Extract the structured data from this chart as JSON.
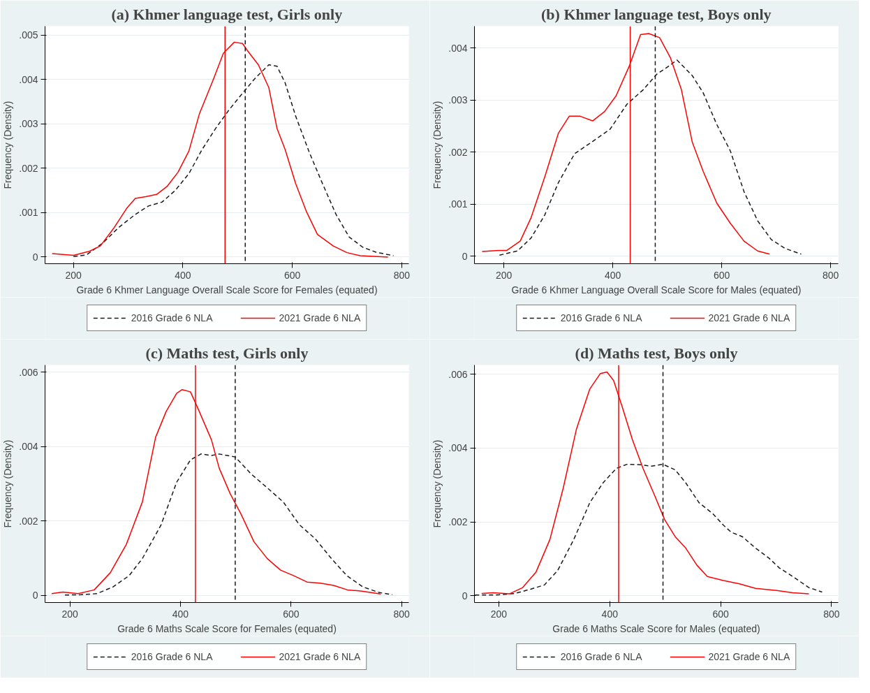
{
  "chart_data": [
    {
      "type": "line",
      "title": "(a) Khmer language test, Girls only",
      "xlabel": "Grade 6 Khmer Language Overall Scale Score for Females (equated)",
      "ylabel": "Frequency (Density)",
      "xlim": [
        148,
        813
      ],
      "ylim": [
        -0.00015,
        0.0052
      ],
      "xticks": [
        200,
        400,
        600,
        800
      ],
      "yticks": [
        0,
        {
          "value": 0.001,
          "label": ".001"
        },
        {
          "value": 0.002,
          "label": ".002"
        },
        {
          "value": 0.003,
          "label": ".003"
        },
        {
          "value": 0.004,
          "label": ".004"
        },
        {
          "value": 0.005,
          "label": ".005"
        }
      ],
      "grid": "y",
      "legend": "bottom",
      "series": [
        {
          "name": "2016 Grade 6 NLA",
          "color": "#1a1a1a",
          "line_style": "dashed",
          "x": [
            200,
            224,
            254,
            283,
            313,
            337,
            362,
            386,
            411,
            435,
            460,
            484,
            509,
            533,
            557,
            572,
            587,
            606,
            631,
            655,
            680,
            704,
            729,
            753,
            785
          ],
          "values": [
            1e-05,
            5e-05,
            0.00032,
            0.00067,
            0.00096,
            0.00115,
            0.00124,
            0.0015,
            0.00188,
            0.00242,
            0.0029,
            0.00331,
            0.00369,
            0.00404,
            0.00433,
            0.0043,
            0.00392,
            0.00318,
            0.00236,
            0.00166,
            0.00096,
            0.00045,
            0.00022,
            0.00011,
            3e-05
          ]
        },
        {
          "name": "2021 Grade 6 NLA",
          "color": "#ff0000",
          "line_style": "solid",
          "x": [
            161,
            180,
            200,
            229,
            249,
            273,
            298,
            313,
            332,
            352,
            371,
            391,
            411,
            430,
            455,
            474,
            494,
            509,
            518,
            538,
            557,
            572,
            587,
            606,
            626,
            646,
            675,
            700,
            724,
            775
          ],
          "values": [
            8e-05,
            6e-05,
            4e-05,
            0.00013,
            0.00025,
            0.00064,
            0.00111,
            0.00132,
            0.00136,
            0.00141,
            0.00159,
            0.00191,
            0.00239,
            0.00322,
            0.00398,
            0.00459,
            0.00484,
            0.00481,
            0.00465,
            0.00433,
            0.00382,
            0.0029,
            0.00242,
            0.00166,
            0.00102,
            0.00051,
            0.00025,
            0.0001,
            3e-05,
            0.0
          ]
        }
      ],
      "ref_lines": [
        {
          "axis": "x",
          "value": 477,
          "color": "#ff0000",
          "line_style": "solid"
        },
        {
          "axis": "x",
          "value": 514,
          "color": "#1a1a1a",
          "line_style": "dashed"
        }
      ]
    },
    {
      "type": "line",
      "title": "(b) Khmer language test, Boys only",
      "xlabel": "Grade 6 Khmer Language Overall Scale Score for Males (equated)",
      "ylabel": "Frequency (Density)",
      "xlim": [
        146,
        814
      ],
      "ylim": [
        -0.000145,
        0.00442
      ],
      "xticks": [
        200,
        400,
        600,
        800
      ],
      "yticks": [
        0,
        {
          "value": 0.001,
          "label": ".001"
        },
        {
          "value": 0.002,
          "label": ".002"
        },
        {
          "value": 0.003,
          "label": ".003"
        },
        {
          "value": 0.004,
          "label": ".004"
        }
      ],
      "grid": "y",
      "legend": "bottom",
      "series": [
        {
          "name": "2016 Grade 6 NLA",
          "color": "#1a1a1a",
          "line_style": "dashed",
          "x": [
            192,
            225,
            250,
            275,
            300,
            330,
            365,
            395,
            426,
            456,
            481,
            501,
            518,
            546,
            566,
            591,
            616,
            641,
            666,
            691,
            716,
            746
          ],
          "values": [
            2e-05,
            0.0001,
            0.00035,
            0.00079,
            0.00141,
            0.00197,
            0.00222,
            0.00244,
            0.00292,
            0.0032,
            0.0035,
            0.00364,
            0.00377,
            0.00347,
            0.00314,
            0.00253,
            0.00202,
            0.00124,
            0.00068,
            0.00032,
            0.00015,
            4e-05
          ]
        },
        {
          "name": "2021 Grade 6 NLA",
          "color": "#ff0000",
          "line_style": "solid",
          "x": [
            160,
            190,
            205,
            230,
            250,
            275,
            300,
            320,
            340,
            363,
            385,
            406,
            431,
            451,
            466,
            486,
            506,
            526,
            546,
            566,
            591,
            616,
            641,
            666,
            688
          ],
          "values": [
            9e-05,
            0.00011,
            0.00011,
            0.00029,
            0.00074,
            0.00152,
            0.00236,
            0.00269,
            0.00269,
            0.0026,
            0.00278,
            0.00308,
            0.00367,
            0.00426,
            0.00428,
            0.0042,
            0.00381,
            0.0032,
            0.00219,
            0.00163,
            0.00102,
            0.00063,
            0.00029,
            0.0001,
            4e-05
          ]
        }
      ],
      "ref_lines": [
        {
          "axis": "x",
          "value": 432,
          "color": "#ff0000",
          "line_style": "solid"
        },
        {
          "axis": "x",
          "value": 478,
          "color": "#1a1a1a",
          "line_style": "dashed"
        }
      ]
    },
    {
      "type": "line",
      "title": "(c) Maths test, Girls only",
      "xlabel": "Grade 6 Maths Scale Score for Females (equated)",
      "ylabel": "Frequency (Density)",
      "xlim": [
        155,
        813
      ],
      "ylim": [
        -0.00019,
        0.00619
      ],
      "xticks": [
        200,
        400,
        600,
        800
      ],
      "yticks": [
        0,
        {
          "value": 0.002,
          "label": ".002"
        },
        {
          "value": 0.004,
          "label": ".004"
        },
        {
          "value": 0.006,
          "label": ".006"
        }
      ],
      "grid": "y",
      "legend": "bottom",
      "series": [
        {
          "name": "2016 Grade 6 NLA",
          "color": "#1a1a1a",
          "line_style": "dashed",
          "x": [
            191,
            220,
            249,
            278,
            307,
            331,
            365,
            393,
            418,
            437,
            456,
            470,
            499,
            528,
            557,
            586,
            615,
            644,
            673,
            701,
            730,
            759,
            783
          ],
          "values": [
            1e-05,
            2e-05,
            5e-05,
            0.00023,
            0.00053,
            0.00099,
            0.0019,
            0.00304,
            0.00364,
            0.0038,
            0.00376,
            0.0038,
            0.00372,
            0.00326,
            0.00289,
            0.00251,
            0.0019,
            0.00152,
            0.00099,
            0.00053,
            0.00023,
            8e-05,
            2e-05
          ]
        },
        {
          "name": "2021 Grade 6 NLA",
          "color": "#ff0000",
          "line_style": "solid",
          "x": [
            167,
            187,
            215,
            244,
            273,
            302,
            331,
            355,
            374,
            393,
            403,
            418,
            432,
            456,
            470,
            490,
            509,
            533,
            557,
            581,
            605,
            629,
            653,
            677,
            702,
            726,
            762
          ],
          "values": [
            5e-05,
            9e-05,
            5e-05,
            0.00015,
            0.00061,
            0.00137,
            0.00251,
            0.00425,
            0.00494,
            0.00543,
            0.00553,
            0.00547,
            0.00501,
            0.00418,
            0.00342,
            0.00273,
            0.0022,
            0.00144,
            0.00099,
            0.00068,
            0.00053,
            0.00036,
            0.00033,
            0.00027,
            0.00015,
            0.00012,
            4e-05
          ]
        }
      ],
      "ref_lines": [
        {
          "axis": "x",
          "value": 427,
          "color": "#ff0000",
          "line_style": "solid"
        },
        {
          "axis": "x",
          "value": 499,
          "color": "#1a1a1a",
          "line_style": "dashed"
        }
      ]
    },
    {
      "type": "line",
      "title": "(d) Maths test, Boys only",
      "xlabel": "Grade 6 Maths Scale Score for Males (equated)",
      "ylabel": "Frequency (Density)",
      "xlim": [
        156,
        812
      ],
      "ylim": [
        -0.000185,
        0.00625
      ],
      "xticks": [
        200,
        400,
        600,
        800
      ],
      "yticks": [
        0,
        {
          "value": 0.002,
          "label": ".002"
        },
        {
          "value": 0.004,
          "label": ".004"
        },
        {
          "value": 0.006,
          "label": ".006"
        }
      ],
      "grid": "y",
      "legend": "bottom",
      "series": [
        {
          "name": "2016 Grade 6 NLA",
          "color": "#1a1a1a",
          "line_style": "dashed",
          "x": [
            157,
            195,
            229,
            258,
            282,
            306,
            335,
            364,
            388,
            412,
            431,
            455,
            475,
            496,
            518,
            537,
            561,
            586,
            605,
            619,
            639,
            663,
            687,
            706,
            730,
            759,
            783
          ],
          "values": [
            2e-05,
            2e-05,
            6e-05,
            0.00018,
            0.00029,
            0.00068,
            0.00152,
            0.00252,
            0.00306,
            0.00345,
            0.00356,
            0.00355,
            0.00351,
            0.00356,
            0.00341,
            0.00306,
            0.00252,
            0.00222,
            0.00191,
            0.00172,
            0.0016,
            0.00129,
            0.00102,
            0.00075,
            0.00052,
            0.00022,
            0.0001
          ]
        },
        {
          "name": "2021 Grade 6 NLA",
          "color": "#ff0000",
          "line_style": "solid",
          "x": [
            169,
            190,
            219,
            243,
            267,
            292,
            316,
            340,
            364,
            383,
            395,
            407,
            422,
            441,
            460,
            480,
            499,
            518,
            537,
            557,
            576,
            605,
            634,
            663,
            701,
            730,
            759
          ],
          "values": [
            6e-05,
            8e-05,
            5e-05,
            0.00022,
            0.00064,
            0.00152,
            0.00291,
            0.00452,
            0.0056,
            0.00602,
            0.00606,
            0.00583,
            0.00514,
            0.00422,
            0.00345,
            0.00275,
            0.00206,
            0.0016,
            0.00129,
            0.00083,
            0.00052,
            0.00041,
            0.00032,
            0.0002,
            0.00014,
            8e-05,
            5e-05
          ]
        }
      ],
      "ref_lines": [
        {
          "axis": "x",
          "value": 416,
          "color": "#ff0000",
          "line_style": "solid"
        },
        {
          "axis": "x",
          "value": 496,
          "color": "#1a1a1a",
          "line_style": "dashed"
        }
      ]
    }
  ]
}
